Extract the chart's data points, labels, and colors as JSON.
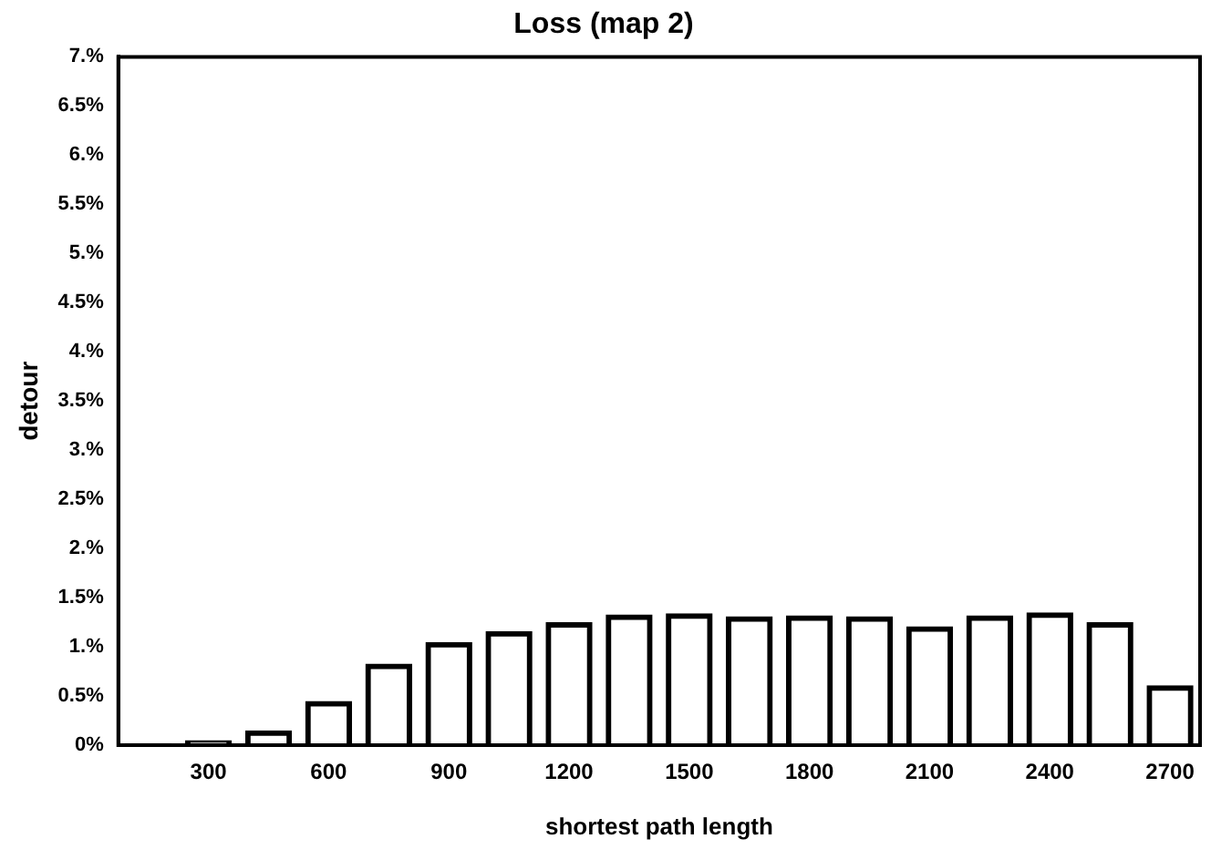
{
  "chart_data": {
    "type": "bar",
    "title": "Loss (map 2)",
    "xlabel": "shortest path length",
    "ylabel": "detour",
    "x": [
      150,
      300,
      450,
      600,
      750,
      900,
      1050,
      1200,
      1350,
      1500,
      1650,
      1800,
      1950,
      2100,
      2250,
      2400,
      2550,
      2700
    ],
    "values": [
      0.02,
      0.05,
      0.15,
      0.45,
      0.83,
      1.05,
      1.16,
      1.25,
      1.33,
      1.34,
      1.31,
      1.32,
      1.31,
      1.21,
      1.32,
      1.35,
      1.25,
      0.61
    ],
    "color": "#000000",
    "xlim": [
      75,
      2775
    ],
    "xticks": [
      300,
      600,
      900,
      1200,
      1500,
      1800,
      2100,
      2400,
      2700
    ],
    "ylim": [
      0,
      7
    ],
    "yticks": [
      {
        "value": 0,
        "label": "0%"
      },
      {
        "value": 0.5,
        "label": "0.5%"
      },
      {
        "value": 1,
        "label": "1.%"
      },
      {
        "value": 1.5,
        "label": "1.5%"
      },
      {
        "value": 2,
        "label": "2.%"
      },
      {
        "value": 2.5,
        "label": "2.5%"
      },
      {
        "value": 3,
        "label": "3.%"
      },
      {
        "value": 3.5,
        "label": "3.5%"
      },
      {
        "value": 4,
        "label": "4.%"
      },
      {
        "value": 4.5,
        "label": "4.5%"
      },
      {
        "value": 5,
        "label": "5.%"
      },
      {
        "value": 5.5,
        "label": "5.5%"
      },
      {
        "value": 6,
        "label": "6.%"
      },
      {
        "value": 6.5,
        "label": "6.5%"
      },
      {
        "value": 7,
        "label": "7.%"
      }
    ],
    "grid": false,
    "legend": false
  }
}
